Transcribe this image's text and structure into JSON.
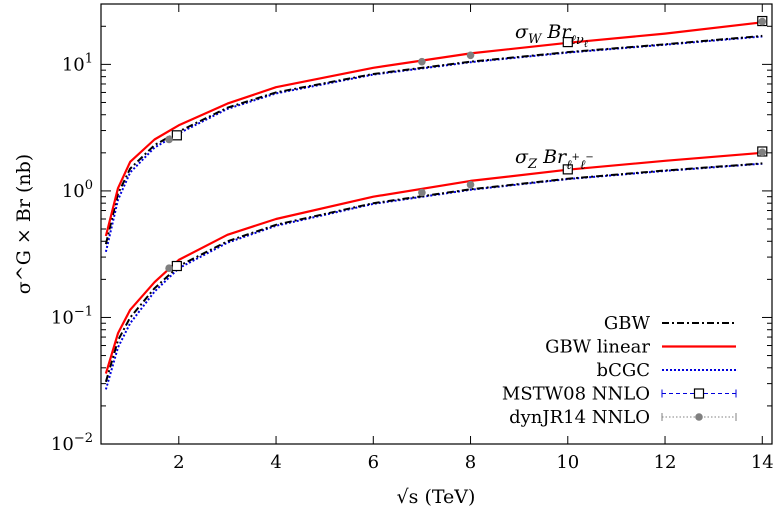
{
  "chart_data": {
    "type": "line",
    "xlabel": "√s (TeV)",
    "ylabel": "σ^G × Br (nb)",
    "xlim": [
      0.4,
      14.2
    ],
    "ylim": [
      0.01,
      30
    ],
    "y_scale": "log",
    "grid": false,
    "legend_position": "bottom-right",
    "x_ticks": [
      2,
      4,
      6,
      8,
      10,
      12,
      14
    ],
    "y_ticks": [
      {
        "value": 0.01,
        "base": "10",
        "exp": "−2"
      },
      {
        "value": 0.1,
        "base": "10",
        "exp": "−1"
      },
      {
        "value": 1,
        "base": "10",
        "exp": "0"
      },
      {
        "value": 10,
        "base": "10",
        "exp": "1"
      }
    ],
    "annotations": [
      {
        "group": "W",
        "text": "σW Brℓνℓ"
      },
      {
        "group": "Z",
        "text": "σZ Brℓ+ℓ−"
      }
    ],
    "series": [
      {
        "name": "GBW",
        "style": "dashdot",
        "color": "#000000",
        "W": {
          "x": [
            0.5,
            0.75,
            1,
            1.5,
            2,
            3,
            4,
            6,
            8,
            10,
            12,
            14
          ],
          "y": [
            0.38,
            0.95,
            1.5,
            2.3,
            2.95,
            4.55,
            6.0,
            8.4,
            10.5,
            12.5,
            14.4,
            16.8
          ]
        },
        "Z": {
          "x": [
            0.5,
            0.75,
            1,
            1.5,
            2,
            3,
            4,
            6,
            8,
            10,
            12,
            14
          ],
          "y": [
            0.031,
            0.066,
            0.1,
            0.17,
            0.255,
            0.4,
            0.54,
            0.8,
            1.03,
            1.25,
            1.45,
            1.65
          ]
        }
      },
      {
        "name": "GBW linear",
        "style": "solid",
        "color": "#ff0000",
        "W": {
          "x": [
            0.5,
            0.75,
            1,
            1.5,
            2,
            3,
            4,
            6,
            8,
            10,
            12,
            14
          ],
          "y": [
            0.44,
            1.05,
            1.7,
            2.55,
            3.3,
            4.9,
            6.6,
            9.4,
            12.2,
            14.8,
            17.5,
            21.5
          ]
        },
        "Z": {
          "x": [
            0.5,
            0.75,
            1,
            1.5,
            2,
            3,
            4,
            6,
            8,
            10,
            12,
            14
          ],
          "y": [
            0.036,
            0.075,
            0.115,
            0.19,
            0.285,
            0.45,
            0.6,
            0.9,
            1.2,
            1.47,
            1.73,
            2.0
          ]
        }
      },
      {
        "name": "bCGC",
        "style": "dotted",
        "color": "#0000dd",
        "W": {
          "x": [
            0.5,
            0.75,
            1,
            1.5,
            2,
            3,
            4,
            6,
            8,
            10,
            12,
            14
          ],
          "y": [
            0.33,
            0.85,
            1.4,
            2.2,
            2.85,
            4.45,
            5.9,
            8.3,
            10.4,
            12.4,
            14.3,
            16.6
          ]
        },
        "Z": {
          "x": [
            0.5,
            0.75,
            1,
            1.5,
            2,
            3,
            4,
            6,
            8,
            10,
            12,
            14
          ],
          "y": [
            0.027,
            0.058,
            0.09,
            0.16,
            0.245,
            0.39,
            0.53,
            0.79,
            1.02,
            1.24,
            1.44,
            1.64
          ]
        }
      },
      {
        "name": "MSTW08 NNLO",
        "style": "dashed-marker-square",
        "color": "#0000dd",
        "W": {
          "x": [
            1.96,
            10,
            14
          ],
          "y": [
            2.75,
            15.0,
            22.0
          ]
        },
        "Z": {
          "x": [
            1.96,
            10,
            14
          ],
          "y": [
            0.255,
            1.48,
            2.05
          ]
        }
      },
      {
        "name": "dynJR14 NNLO",
        "style": "dotted-marker-circle",
        "color": "#808080",
        "W": {
          "x": [
            1.8,
            7,
            8,
            14
          ],
          "y": [
            2.55,
            10.5,
            11.8,
            21.8
          ]
        },
        "Z": {
          "x": [
            1.8,
            7,
            8,
            14
          ],
          "y": [
            0.245,
            0.97,
            1.12,
            2.02
          ]
        }
      }
    ]
  }
}
